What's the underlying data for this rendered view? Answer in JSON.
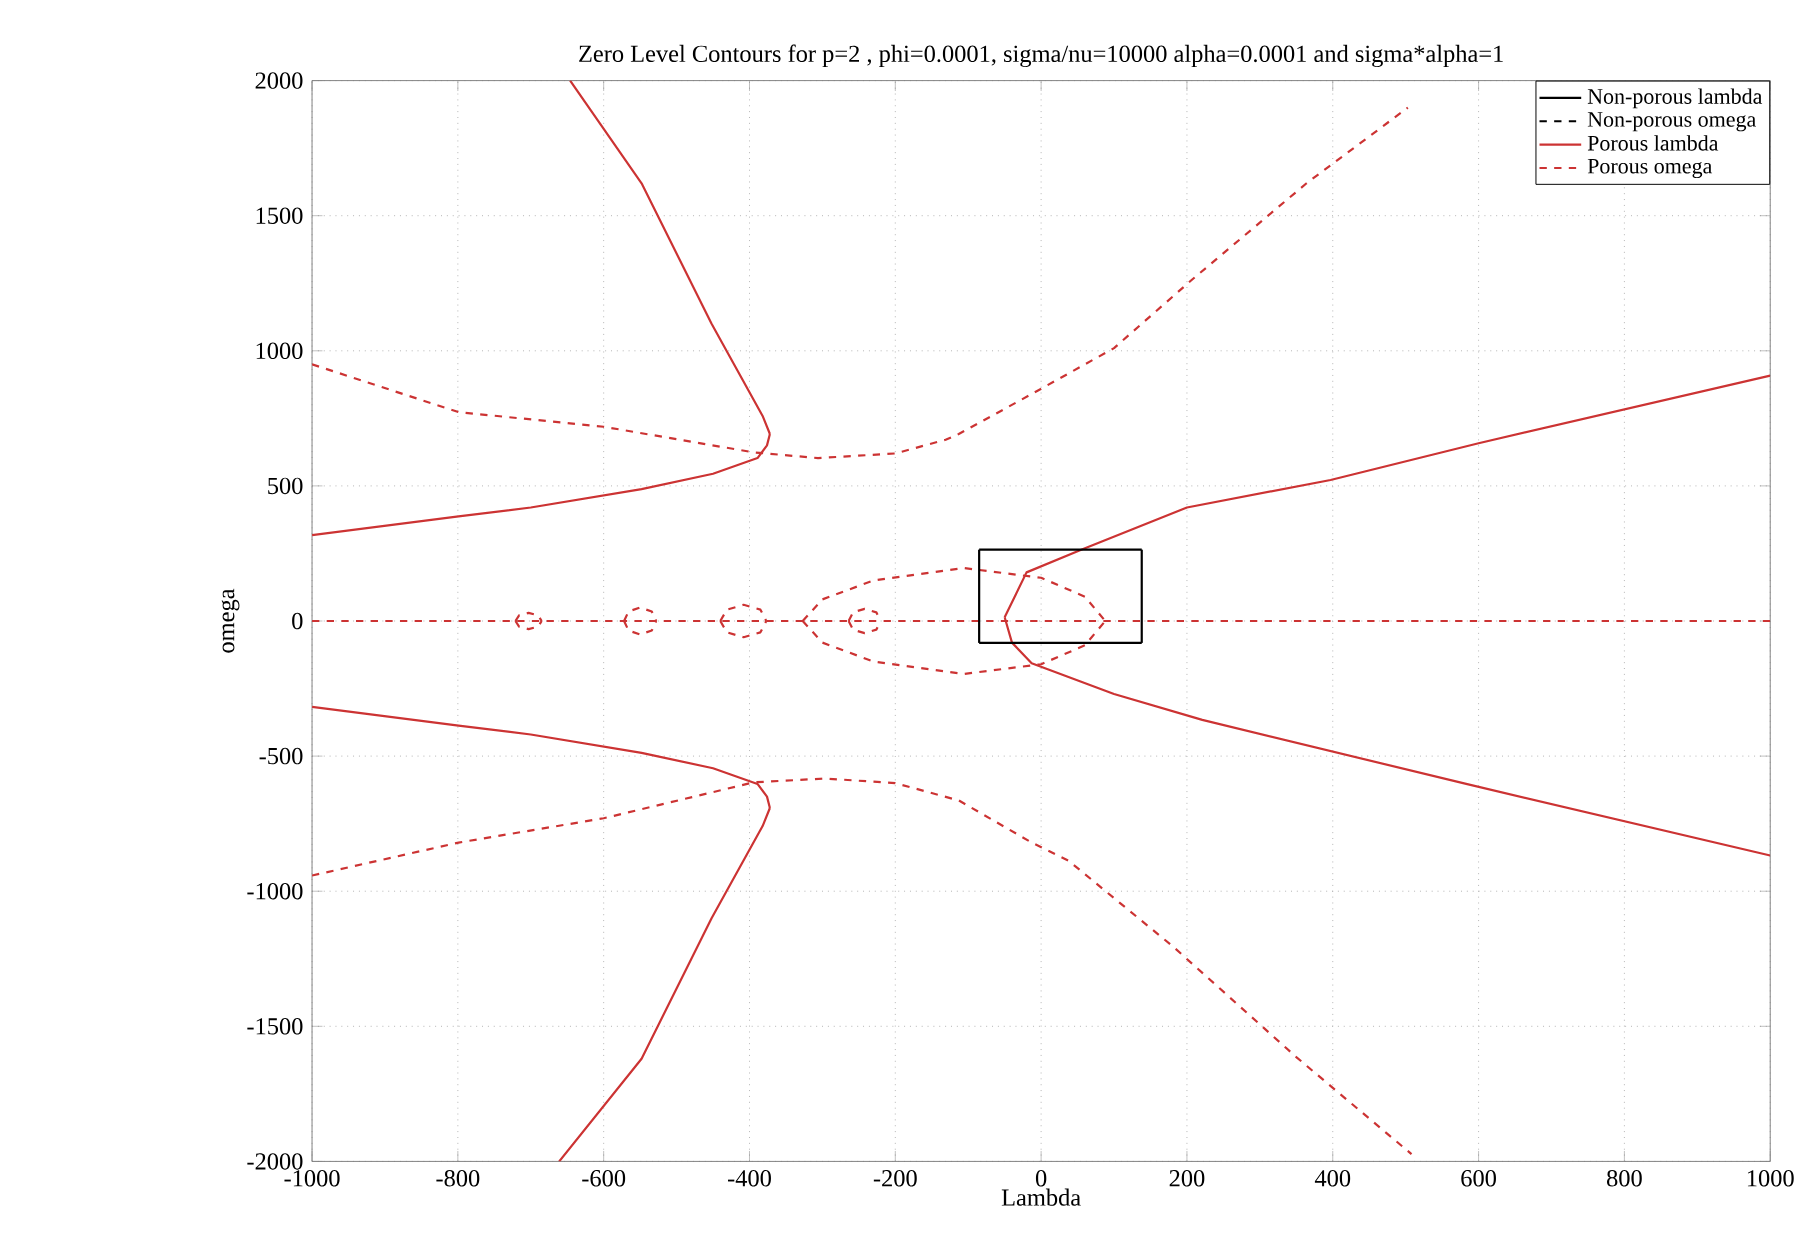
{
  "chart_data": {
    "type": "line",
    "title": "Zero Level Contours for p=2 , phi=0.0001, sigma/nu=10000 alpha=0.0001 and sigma*alpha=1",
    "xlabel": "Lambda",
    "ylabel": "omega",
    "xlim": [
      -1000,
      1000
    ],
    "ylim": [
      -2000,
      2000
    ],
    "xticks": [
      -1000,
      -800,
      -600,
      -400,
      -200,
      0,
      200,
      400,
      600,
      800,
      1000
    ],
    "yticks": [
      -2000,
      -1500,
      -1000,
      -500,
      0,
      500,
      1000,
      1500,
      2000
    ],
    "grid": true,
    "legend": "top right",
    "series": [
      {
        "name": "Non-porous lambda",
        "color": "#000000",
        "line_style": "solid"
      },
      {
        "name": "Non-porous omega",
        "color": "#000000",
        "line_style": "dashed"
      },
      {
        "name": "Porous lambda",
        "color": "#cc3333",
        "line_style": "solid",
        "x": [
          -646,
          -548,
          -452,
          -382,
          -372
        ],
        "values": [
          2000,
          1620,
          1100,
          759,
          692
        ]
      },
      {
        "color": "#cc3333",
        "line_style": "solid",
        "x": [
          -372,
          -376,
          -389,
          -450,
          -548,
          -700,
          -799,
          -1000
        ],
        "values": [
          692,
          650,
          603,
          545,
          488,
          420,
          387,
          318
        ]
      },
      {
        "color": "#cc3333",
        "line_style": "solid",
        "x": [
          -1000,
          -799,
          -700,
          -548,
          -450,
          -389,
          -376,
          -372
        ],
        "values": [
          -318,
          -387,
          -420,
          -488,
          -545,
          -603,
          -650,
          -692
        ]
      },
      {
        "color": "#cc3333",
        "line_style": "solid",
        "x": [
          -372,
          -382,
          -452,
          -548,
          -661
        ],
        "values": [
          -692,
          -759,
          -1100,
          -1620,
          -2000
        ]
      },
      {
        "color": "#cc3333",
        "line_style": "solid",
        "x": [
          1000,
          600,
          397,
          200,
          55,
          -20,
          -50
        ],
        "values": [
          908,
          658,
          522,
          420,
          264,
          180,
          14
        ]
      },
      {
        "color": "#cc3333",
        "line_style": "solid",
        "x": [
          -50,
          -40,
          -13,
          100,
          221,
          583,
          1000
        ],
        "values": [
          14,
          -80,
          -156,
          -270,
          -366,
          -603,
          -868
        ]
      },
      {
        "name": "Porous omega",
        "color": "#cc3333",
        "line_style": "dashed",
        "x": [
          -1000,
          1000
        ],
        "values": [
          0,
          0
        ]
      },
      {
        "color": "#cc3333",
        "line_style": "dashed",
        "x": [
          -721,
          -716,
          -703,
          -690,
          -685
        ],
        "values": [
          0,
          21,
          30,
          21,
          0
        ]
      },
      {
        "color": "#cc3333",
        "line_style": "dashed",
        "x": [
          -721,
          -716,
          -703,
          -690,
          -685
        ],
        "values": [
          0,
          -21,
          -30,
          -21,
          0
        ]
      },
      {
        "color": "#cc3333",
        "line_style": "dashed",
        "x": [
          -572,
          -566,
          -550,
          -534,
          -528
        ],
        "values": [
          0,
          35,
          50,
          35,
          0
        ]
      },
      {
        "color": "#cc3333",
        "line_style": "dashed",
        "x": [
          -572,
          -566,
          -550,
          -534,
          -528
        ],
        "values": [
          0,
          -35,
          -50,
          -35,
          0
        ]
      },
      {
        "color": "#cc3333",
        "line_style": "dashed",
        "x": [
          -440,
          -431,
          -408,
          -385,
          -377
        ],
        "values": [
          0,
          42,
          60,
          42,
          0
        ]
      },
      {
        "color": "#cc3333",
        "line_style": "dashed",
        "x": [
          -440,
          -431,
          -408,
          -385,
          -377
        ],
        "values": [
          0,
          -42,
          -60,
          -42,
          0
        ]
      },
      {
        "color": "#cc3333",
        "line_style": "dashed",
        "x": [
          -264,
          -258,
          -242,
          -226,
          -220
        ],
        "values": [
          0,
          32,
          45,
          32,
          0
        ]
      },
      {
        "color": "#cc3333",
        "line_style": "dashed",
        "x": [
          -264,
          -258,
          -242,
          -226,
          -220
        ],
        "values": [
          0,
          -32,
          -45,
          -32,
          0
        ]
      },
      {
        "color": "#cc3333",
        "line_style": "dashed",
        "x": [
          -327,
          -300,
          -230,
          -106,
          0,
          60,
          88
        ],
        "values": [
          0,
          80,
          150,
          196,
          160,
          90,
          0
        ]
      },
      {
        "color": "#cc3333",
        "line_style": "dashed",
        "x": [
          -327,
          -300,
          -230,
          -106,
          0,
          60,
          88
        ],
        "values": [
          0,
          -80,
          -150,
          -196,
          -160,
          -90,
          0
        ]
      },
      {
        "color": "#cc3333",
        "line_style": "dashed",
        "x": [
          -1000,
          -799,
          -600,
          -394,
          -306,
          -200,
          -131,
          -113,
          -13,
          100,
          206,
          364,
          503
        ],
        "values": [
          950,
          773,
          719,
          624,
          603,
          620,
          671,
          692,
          840,
          1010,
          1261,
          1620,
          1900
        ]
      },
      {
        "color": "#cc3333",
        "line_style": "dashed",
        "x": [
          -1000,
          -799,
          -600,
          -394,
          -296,
          -200,
          -113,
          -13,
          38,
          181,
          350,
          508
        ],
        "values": [
          -942,
          -820,
          -730,
          -597,
          -583,
          -600,
          -664,
          -820,
          -888,
          -1205,
          -1614,
          -1973
        ]
      },
      {
        "color": "#000000",
        "line_style": "solid",
        "x": [
          -85,
          138
        ],
        "values": [
          264,
          264
        ]
      },
      {
        "color": "#000000",
        "line_style": "solid",
        "x": [
          -85,
          138
        ],
        "values": [
          -81,
          -81
        ]
      },
      {
        "color": "#000000",
        "line_style": "solid",
        "x": [
          -85,
          -85
        ],
        "values": [
          264,
          -81
        ]
      },
      {
        "color": "#000000",
        "line_style": "solid",
        "x": [
          138,
          138
        ],
        "values": [
          264,
          -81
        ]
      }
    ]
  }
}
